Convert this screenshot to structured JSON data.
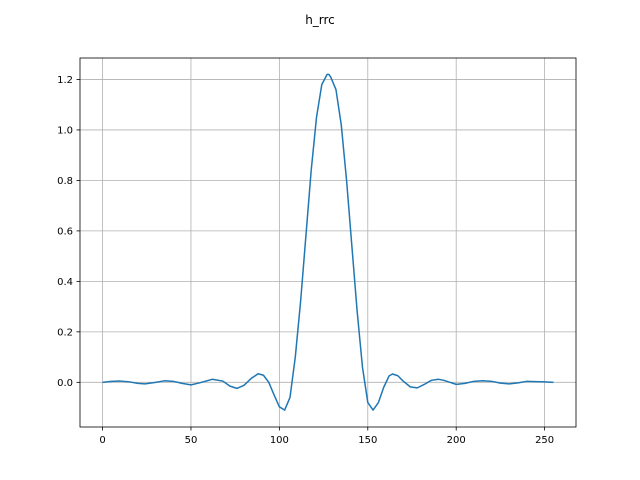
{
  "chart_data": {
    "type": "line",
    "title": "h_rrc",
    "xlabel": "",
    "ylabel": "",
    "xlim": [
      -12.75,
      267.75
    ],
    "ylim": [
      -0.177,
      1.285
    ],
    "grid": true,
    "xticks": [
      0,
      50,
      100,
      150,
      200,
      250
    ],
    "yticks": [
      0.0,
      0.2,
      0.4,
      0.6,
      0.8,
      1.0,
      1.2
    ],
    "xtick_labels": [
      "0",
      "50",
      "100",
      "150",
      "200",
      "250"
    ],
    "ytick_labels": [
      "0.0",
      "0.2",
      "0.4",
      "0.6",
      "0.8",
      "1.0",
      "1.2"
    ],
    "series": [
      {
        "color": "#1f77b4",
        "x": [
          0,
          5,
          10,
          15,
          20,
          24,
          30,
          35,
          40,
          45,
          50,
          55,
          62,
          68,
          72,
          76,
          80,
          84,
          88,
          91,
          94,
          97,
          100,
          103,
          106,
          109,
          112,
          115,
          118,
          121,
          124,
          127,
          128,
          129,
          132,
          135,
          138,
          141,
          144,
          147,
          150,
          153,
          156,
          159,
          162,
          164,
          167,
          170,
          174,
          178,
          182,
          186,
          190,
          193,
          196,
          200,
          205,
          210,
          215,
          220,
          225,
          230,
          235,
          240,
          245,
          250,
          255
        ],
        "y": [
          0.0,
          0.004,
          0.005,
          0.002,
          -0.004,
          -0.006,
          0.0,
          0.006,
          0.004,
          -0.004,
          -0.01,
          -0.002,
          0.012,
          0.005,
          -0.015,
          -0.024,
          -0.012,
          0.015,
          0.034,
          0.028,
          0.0,
          -0.05,
          -0.097,
          -0.11,
          -0.06,
          0.1,
          0.32,
          0.58,
          0.84,
          1.05,
          1.18,
          1.22,
          1.22,
          1.21,
          1.16,
          1.02,
          0.8,
          0.54,
          0.28,
          0.06,
          -0.08,
          -0.11,
          -0.08,
          -0.02,
          0.025,
          0.033,
          0.026,
          0.005,
          -0.018,
          -0.022,
          -0.008,
          0.008,
          0.012,
          0.008,
          0.001,
          -0.008,
          -0.004,
          0.004,
          0.006,
          0.004,
          -0.003,
          -0.006,
          -0.002,
          0.004,
          0.003,
          0.002,
          0.0
        ]
      }
    ]
  }
}
